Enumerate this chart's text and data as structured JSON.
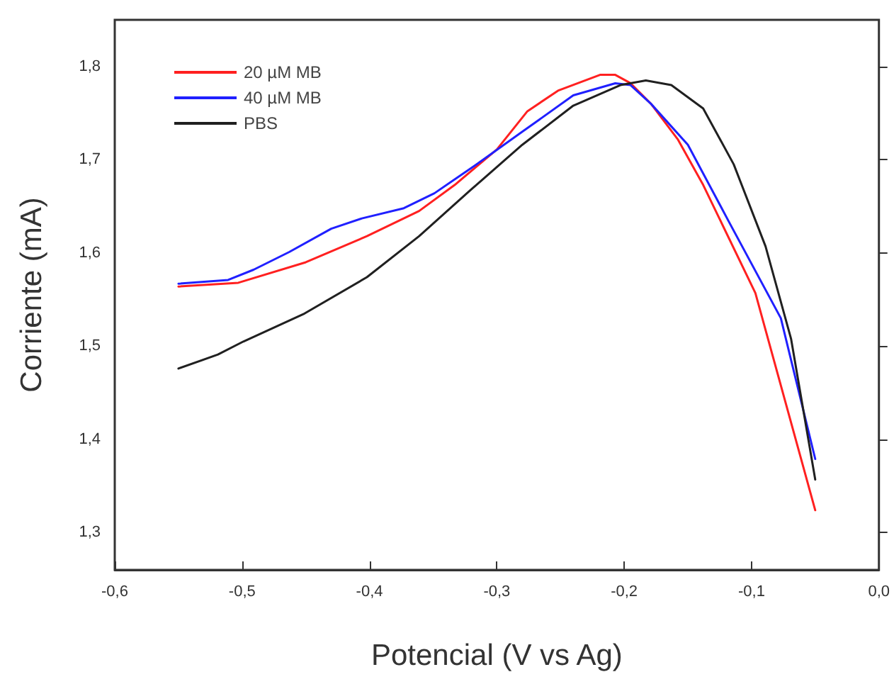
{
  "chart_data": {
    "type": "line",
    "xlabel": "Potencial (V vs Ag)",
    "ylabel": "Corriente (mA)",
    "xlim": [
      -0.6,
      0.0
    ],
    "xticks": [
      {
        "value": -0.6,
        "label": "-0,6"
      },
      {
        "value": -0.5,
        "label": "-0,5"
      },
      {
        "value": -0.4,
        "label": "-0,4"
      },
      {
        "value": -0.3,
        "label": "-0,3"
      },
      {
        "value": -0.2,
        "label": "-0,2"
      },
      {
        "value": -0.1,
        "label": "-0,1"
      },
      {
        "value": 0.0,
        "label": "0,0"
      }
    ],
    "ylim": [
      1.26,
      1.85
    ],
    "yticks": [
      {
        "value": 1.3,
        "label": "1,3"
      },
      {
        "value": 1.4,
        "label": "1,4"
      },
      {
        "value": 1.5,
        "label": "1,5"
      },
      {
        "value": 1.6,
        "label": "1,6"
      },
      {
        "value": 1.7,
        "label": "1,7"
      },
      {
        "value": 1.8,
        "label": "1,8"
      }
    ],
    "grid": false,
    "legend": "top left",
    "marker": "none",
    "line_style": "solid",
    "series": [
      {
        "name": "20 µM MB",
        "color": "#ff2020",
        "x": [
          -0.55,
          -0.503,
          -0.45,
          -0.402,
          -0.361,
          -0.333,
          -0.3,
          -0.276,
          -0.252,
          -0.219,
          -0.207,
          -0.195,
          -0.179,
          -0.158,
          -0.138,
          -0.097,
          -0.05
        ],
        "values": [
          1.564,
          1.568,
          1.59,
          1.618,
          1.645,
          1.673,
          1.711,
          1.752,
          1.774,
          1.791,
          1.791,
          1.782,
          1.76,
          1.722,
          1.673,
          1.557,
          1.324
        ]
      },
      {
        "name": "40 µM MB",
        "color": "#2020ff",
        "x": [
          -0.55,
          -0.511,
          -0.491,
          -0.463,
          -0.43,
          -0.406,
          -0.373,
          -0.349,
          -0.317,
          -0.28,
          -0.24,
          -0.207,
          -0.195,
          -0.179,
          -0.15,
          -0.118,
          -0.077,
          -0.05
        ],
        "values": [
          1.567,
          1.571,
          1.582,
          1.601,
          1.626,
          1.637,
          1.648,
          1.664,
          1.694,
          1.73,
          1.769,
          1.782,
          1.78,
          1.76,
          1.716,
          1.634,
          1.53,
          1.379
        ]
      },
      {
        "name": "PBS",
        "color": "#202020",
        "x": [
          -0.55,
          -0.519,
          -0.499,
          -0.451,
          -0.402,
          -0.361,
          -0.321,
          -0.28,
          -0.24,
          -0.203,
          -0.183,
          -0.163,
          -0.138,
          -0.114,
          -0.089,
          -0.069,
          -0.05
        ],
        "values": [
          1.476,
          1.491,
          1.505,
          1.535,
          1.574,
          1.618,
          1.667,
          1.716,
          1.758,
          1.78,
          1.785,
          1.78,
          1.755,
          1.695,
          1.607,
          1.508,
          1.357
        ]
      }
    ]
  }
}
